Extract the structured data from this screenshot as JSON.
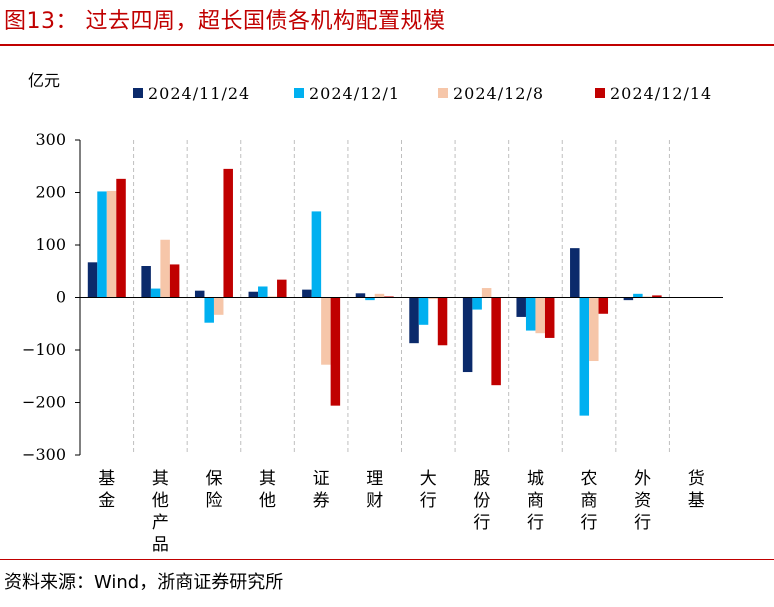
{
  "figure": {
    "title": "图13：  过去四周，超长国债各机构配置规模",
    "source": "资料来源：Wind，浙商证券研究所"
  },
  "chart_data": {
    "type": "bar",
    "unit_label": "亿元",
    "categories": [
      "基金",
      "其他产品",
      "保险",
      "其他",
      "证券",
      "理财",
      "大行",
      "股份行",
      "城商行",
      "农商行",
      "外资行",
      "货基"
    ],
    "series": [
      {
        "name": "2024/11/24",
        "color": "#0b2a6b",
        "values": [
          67,
          60,
          13,
          11,
          15,
          8,
          -87,
          -142,
          -37,
          94,
          -5,
          0
        ]
      },
      {
        "name": "2024/12/1",
        "color": "#00b0f0",
        "values": [
          202,
          17,
          -48,
          21,
          164,
          -5,
          -52,
          -23,
          -63,
          -225,
          7,
          0
        ]
      },
      {
        "name": "2024/12/8",
        "color": "#f6c6a9",
        "values": [
          203,
          110,
          -33,
          2,
          -128,
          7,
          -3,
          18,
          -68,
          -121,
          2,
          0
        ]
      },
      {
        "name": "2024/12/14",
        "color": "#c00000",
        "values": [
          226,
          63,
          245,
          34,
          -206,
          2,
          -91,
          -167,
          -77,
          -31,
          4,
          0
        ]
      }
    ],
    "ylim": [
      -300,
      300
    ],
    "yticks": [
      300,
      200,
      100,
      0,
      -100,
      -200,
      -300
    ],
    "legend_position": "top",
    "grid": "vertical dashed separators between categories"
  }
}
